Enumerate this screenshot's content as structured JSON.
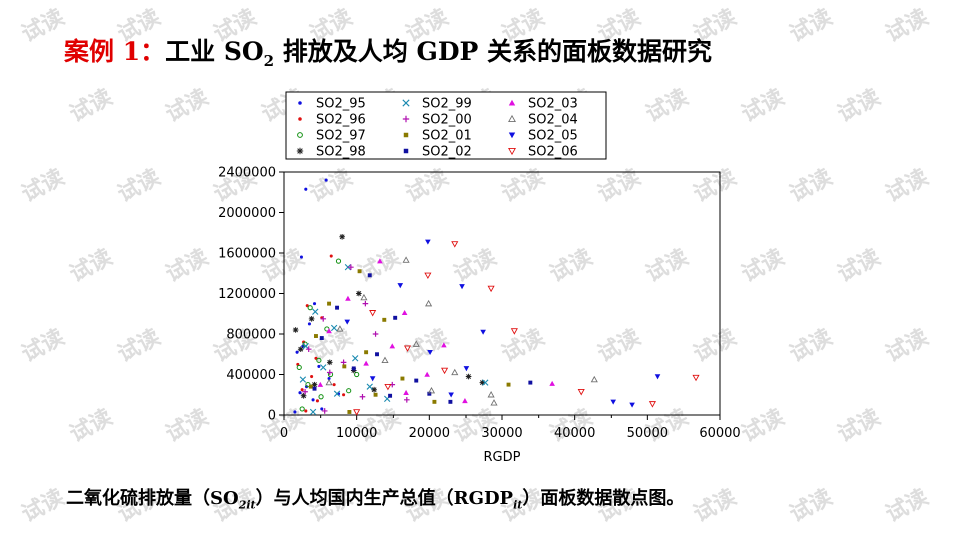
{
  "slide": {
    "title_prefix": "案例 1：",
    "title_main_1": "工业 SO",
    "title_sub": "2",
    "title_main_2": " 排放及人均 GDP 关系的面板数据研究",
    "caption_1": "二氧化硫排放量（SO",
    "caption_sub1": "2it",
    "caption_2": "）与人均国内生产总值（RGDP",
    "caption_sub2": "it",
    "caption_3": "）面板数据散点图。",
    "watermark_text": "试读",
    "accent_color": "#e00000"
  },
  "chart_data": {
    "type": "scatter",
    "title": "",
    "xlabel": "RGDP",
    "ylabel": "",
    "xlim": [
      0,
      60000
    ],
    "ylim": [
      0,
      2400000
    ],
    "x_ticks": [
      "0",
      "10000",
      "20000",
      "30000",
      "40000",
      "50000",
      "60000"
    ],
    "y_ticks": [
      "0",
      "400000",
      "800000",
      "1200000",
      "1600000",
      "2000000",
      "2400000"
    ],
    "grid": false,
    "legend_position": "top",
    "series": [
      {
        "name": "SO2_95",
        "marker": "dot",
        "color": "#1010e0",
        "points": [
          [
            3000,
            2230000
          ],
          [
            5800,
            2320000
          ],
          [
            2400,
            1560000
          ],
          [
            4200,
            1100000
          ],
          [
            3500,
            900000
          ],
          [
            2600,
            680000
          ],
          [
            1800,
            620000
          ],
          [
            4800,
            480000
          ],
          [
            6200,
            360000
          ],
          [
            3100,
            280000
          ],
          [
            2200,
            220000
          ],
          [
            7500,
            210000
          ],
          [
            4000,
            150000
          ],
          [
            1500,
            30000
          ],
          [
            5200,
            60000
          ]
        ]
      },
      {
        "name": "SO2_96",
        "marker": "dot",
        "color": "#e01010",
        "points": [
          [
            6500,
            1570000
          ],
          [
            3200,
            1080000
          ],
          [
            5200,
            960000
          ],
          [
            2700,
            720000
          ],
          [
            4400,
            560000
          ],
          [
            1900,
            500000
          ],
          [
            3800,
            380000
          ],
          [
            6900,
            300000
          ],
          [
            2500,
            250000
          ],
          [
            8200,
            200000
          ],
          [
            4600,
            140000
          ],
          [
            3000,
            40000
          ]
        ]
      },
      {
        "name": "SO2_97",
        "marker": "circle",
        "color": "#109010",
        "points": [
          [
            7500,
            1520000
          ],
          [
            3600,
            1060000
          ],
          [
            5900,
            850000
          ],
          [
            2900,
            700000
          ],
          [
            4800,
            540000
          ],
          [
            2100,
            470000
          ],
          [
            6400,
            400000
          ],
          [
            3300,
            300000
          ],
          [
            8900,
            240000
          ],
          [
            5100,
            180000
          ],
          [
            2500,
            60000
          ],
          [
            10000,
            400000
          ]
        ]
      },
      {
        "name": "SO2_98",
        "marker": "star",
        "color": "#202020",
        "points": [
          [
            8000,
            1760000
          ],
          [
            1600,
            840000
          ],
          [
            10300,
            1200000
          ],
          [
            3800,
            950000
          ],
          [
            2300,
            650000
          ],
          [
            6300,
            520000
          ],
          [
            9600,
            440000
          ],
          [
            4200,
            300000
          ],
          [
            12400,
            250000
          ],
          [
            2700,
            190000
          ],
          [
            25400,
            380000
          ],
          [
            27300,
            320000
          ]
        ]
      },
      {
        "name": "SO2_99",
        "marker": "x",
        "color": "#1a8ab0",
        "points": [
          [
            8800,
            1460000
          ],
          [
            4300,
            1020000
          ],
          [
            6900,
            860000
          ],
          [
            3000,
            680000
          ],
          [
            9800,
            560000
          ],
          [
            5400,
            470000
          ],
          [
            2600,
            350000
          ],
          [
            11800,
            280000
          ],
          [
            7300,
            210000
          ],
          [
            14200,
            160000
          ],
          [
            4000,
            30000
          ],
          [
            27700,
            320000
          ]
        ]
      },
      {
        "name": "SO2_00",
        "marker": "plus",
        "color": "#b010b0",
        "points": [
          [
            9200,
            1460000
          ],
          [
            11200,
            1100000
          ],
          [
            5400,
            950000
          ],
          [
            12600,
            800000
          ],
          [
            3400,
            650000
          ],
          [
            8200,
            520000
          ],
          [
            6300,
            420000
          ],
          [
            14900,
            300000
          ],
          [
            2900,
            230000
          ],
          [
            10800,
            180000
          ],
          [
            16900,
            150000
          ],
          [
            5600,
            40000
          ]
        ]
      },
      {
        "name": "SO2_01",
        "marker": "square",
        "color": "#8a7a00",
        "points": [
          [
            10400,
            1420000
          ],
          [
            6200,
            1100000
          ],
          [
            13800,
            940000
          ],
          [
            4400,
            780000
          ],
          [
            11300,
            620000
          ],
          [
            8300,
            480000
          ],
          [
            16300,
            360000
          ],
          [
            3700,
            280000
          ],
          [
            12600,
            200000
          ],
          [
            20700,
            130000
          ],
          [
            30900,
            300000
          ],
          [
            9000,
            30000
          ]
        ]
      },
      {
        "name": "SO2_02",
        "marker": "square",
        "color": "#1010a0",
        "points": [
          [
            11800,
            1380000
          ],
          [
            7300,
            1060000
          ],
          [
            15300,
            960000
          ],
          [
            5200,
            760000
          ],
          [
            12800,
            600000
          ],
          [
            9600,
            460000
          ],
          [
            18200,
            340000
          ],
          [
            4200,
            260000
          ],
          [
            14600,
            190000
          ],
          [
            22900,
            130000
          ],
          [
            33900,
            320000
          ],
          [
            20000,
            210000
          ]
        ]
      },
      {
        "name": "SO2_03",
        "marker": "triangle",
        "color": "#e010e0",
        "points": [
          [
            13200,
            1520000
          ],
          [
            8800,
            1150000
          ],
          [
            16600,
            1010000
          ],
          [
            6200,
            830000
          ],
          [
            14900,
            680000
          ],
          [
            11300,
            510000
          ],
          [
            19700,
            400000
          ],
          [
            5000,
            300000
          ],
          [
            16800,
            220000
          ],
          [
            24900,
            140000
          ],
          [
            36900,
            310000
          ],
          [
            22000,
            690000
          ]
        ]
      },
      {
        "name": "SO2_04",
        "marker": "triangle-open",
        "color": "#707070",
        "points": [
          [
            16800,
            1530000
          ],
          [
            11000,
            1160000
          ],
          [
            19900,
            1100000
          ],
          [
            7700,
            850000
          ],
          [
            18200,
            700000
          ],
          [
            13900,
            540000
          ],
          [
            23500,
            420000
          ],
          [
            6200,
            320000
          ],
          [
            20300,
            240000
          ],
          [
            28500,
            200000
          ],
          [
            42700,
            350000
          ],
          [
            28900,
            120000
          ]
        ]
      },
      {
        "name": "SO2_05",
        "marker": "triangle-down",
        "color": "#1010e0",
        "points": [
          [
            19800,
            1710000
          ],
          [
            16000,
            1280000
          ],
          [
            24500,
            1270000
          ],
          [
            8700,
            920000
          ],
          [
            27400,
            820000
          ],
          [
            20100,
            620000
          ],
          [
            25100,
            460000
          ],
          [
            12200,
            360000
          ],
          [
            47900,
            100000
          ],
          [
            45300,
            130000
          ],
          [
            51400,
            380000
          ],
          [
            23000,
            200000
          ]
        ]
      },
      {
        "name": "SO2_06",
        "marker": "triangle-down-open",
        "color": "#e01010",
        "points": [
          [
            23500,
            1690000
          ],
          [
            28500,
            1250000
          ],
          [
            19800,
            1380000
          ],
          [
            31700,
            830000
          ],
          [
            12200,
            1010000
          ],
          [
            17000,
            660000
          ],
          [
            22100,
            440000
          ],
          [
            40900,
            230000
          ],
          [
            50700,
            110000
          ],
          [
            56700,
            370000
          ],
          [
            14300,
            280000
          ],
          [
            10000,
            30000
          ]
        ]
      }
    ]
  }
}
